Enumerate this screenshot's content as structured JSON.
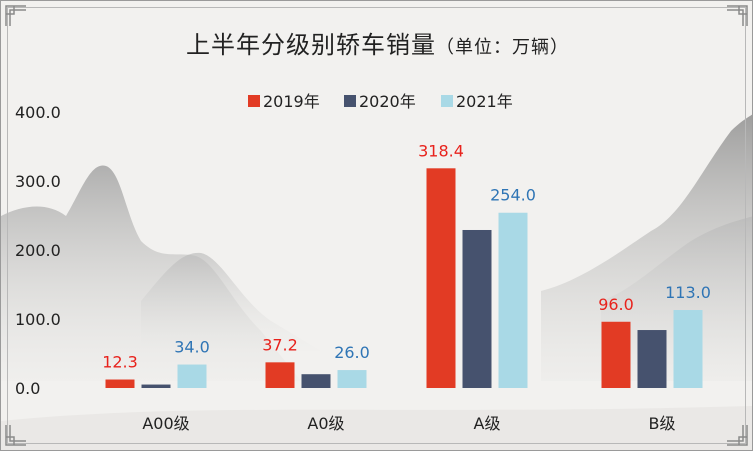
{
  "chart_data": {
    "type": "bar",
    "title": "上半年分级别轿车销量",
    "unit_note": "（单位：万辆）",
    "categories": [
      "A00级",
      "A0级",
      "A级",
      "B级"
    ],
    "series": [
      {
        "name": "2019年",
        "color": "#e23b24",
        "values": [
          12.3,
          37.2,
          318.4,
          96.0
        ],
        "label_color": "#e8221c",
        "show_labels": true
      },
      {
        "name": "2020年",
        "color": "#46526e",
        "values": [
          5.0,
          20.0,
          229.0,
          84.0
        ],
        "show_labels": false
      },
      {
        "name": "2021年",
        "color": "#a9d9e6",
        "values": [
          34.0,
          26.0,
          254.0,
          113.0
        ],
        "label_color": "#2f75b5",
        "show_labels": true
      }
    ],
    "ylim": [
      0,
      400
    ],
    "yticks": [
      "0.0",
      "100.0",
      "200.0",
      "300.0",
      "400.0"
    ],
    "data_labels": {
      "2019年": [
        "12.3",
        "37.2",
        "318.4",
        "96.0"
      ],
      "2021年": [
        "34.0",
        "26.0",
        "254.0",
        "113.0"
      ]
    },
    "legend_position": "top-center",
    "grid": false
  }
}
